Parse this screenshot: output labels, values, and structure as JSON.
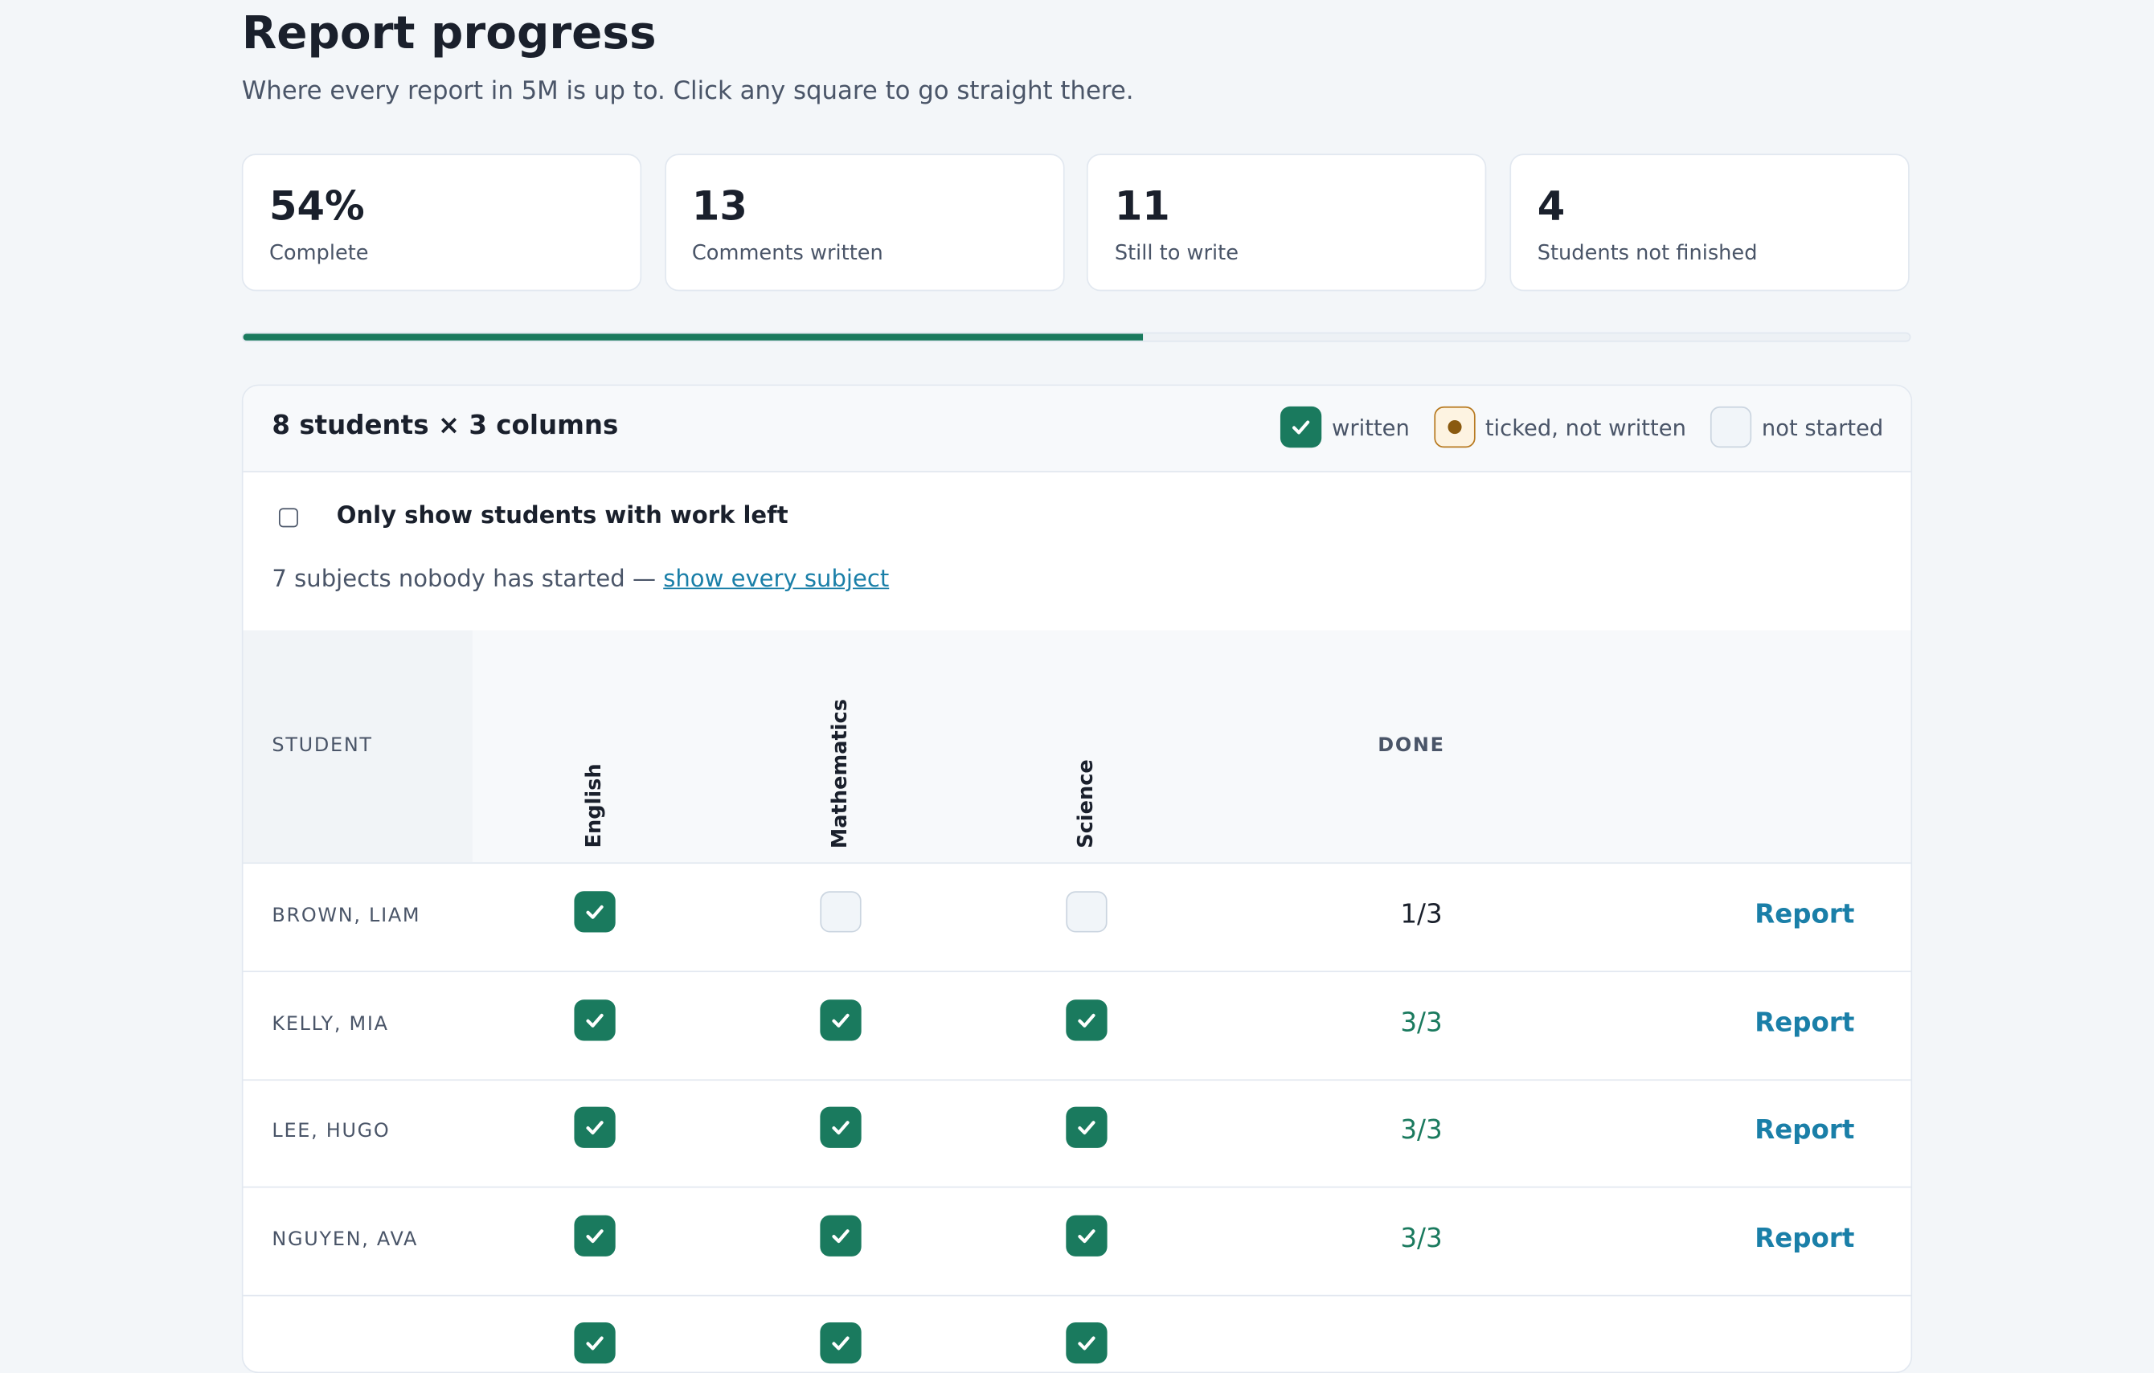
{
  "header": {
    "title": "Report progress",
    "subtitle": "Where every report in 5M is up to. Click any square to go straight there."
  },
  "stats": [
    {
      "value": "54%",
      "label": "Complete"
    },
    {
      "value": "13",
      "label": "Comments written"
    },
    {
      "value": "11",
      "label": "Still to write"
    },
    {
      "value": "4",
      "label": "Students not finished"
    }
  ],
  "progress": {
    "percent": 54
  },
  "panel": {
    "title": "8 students × 3 columns",
    "legend": [
      {
        "status": "written",
        "label": "written"
      },
      {
        "status": "ticked",
        "label": "ticked, not written"
      },
      {
        "status": "not_started",
        "label": "not started"
      }
    ],
    "filter_label": "Only show students with work left",
    "note": "7 subjects nobody has started —",
    "note_link": "show every subject"
  },
  "table": {
    "student_header": "STUDENT",
    "subjects": [
      "English",
      "Mathematics",
      "Science"
    ],
    "done_header": "DONE",
    "rows": [
      {
        "name": "BROWN, LIAM",
        "cells": [
          "written",
          "not_started",
          "not_started"
        ],
        "done": "1/3",
        "action": "Report"
      },
      {
        "name": "KELLY, MIA",
        "cells": [
          "written",
          "written",
          "written"
        ],
        "done": "3/3",
        "action": "Report"
      },
      {
        "name": "LEE, HUGO",
        "cells": [
          "written",
          "written",
          "written"
        ],
        "done": "3/3",
        "action": "Report"
      },
      {
        "name": "NGUYEN, AVA",
        "cells": [
          "written",
          "written",
          "written"
        ],
        "done": "3/3",
        "action": "Report"
      },
      {
        "name": null,
        "cells": [
          "written",
          "written",
          "written"
        ],
        "done": null,
        "action": null
      }
    ]
  }
}
